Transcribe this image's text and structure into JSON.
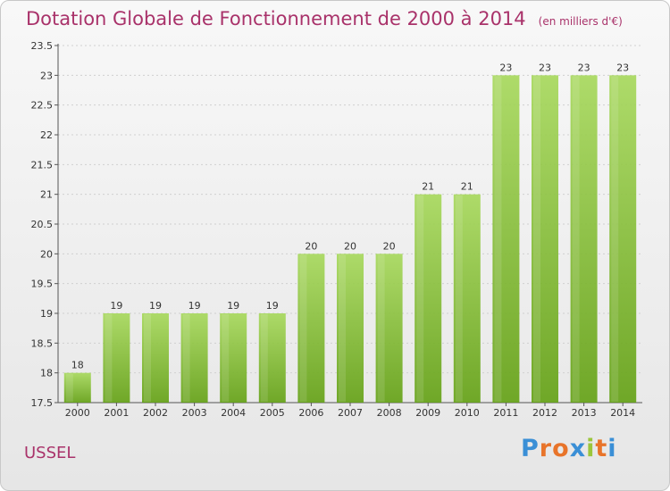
{
  "chart_data": {
    "type": "bar",
    "title": "Dotation Globale de Fonctionnement de 2000 à 2014",
    "subtitle": "(en milliers d'€)",
    "xlabel": "",
    "ylabel": "",
    "ylim": [
      17.5,
      23.5
    ],
    "yticks": [
      "17.5",
      "18",
      "18.5",
      "19",
      "19.5",
      "20",
      "20.5",
      "21",
      "21.5",
      "22",
      "22.5",
      "23",
      "23.5"
    ],
    "categories": [
      "2000",
      "2001",
      "2002",
      "2003",
      "2004",
      "2005",
      "2006",
      "2007",
      "2008",
      "2009",
      "2010",
      "2011",
      "2012",
      "2013",
      "2014"
    ],
    "values": [
      18,
      19,
      19,
      19,
      19,
      19,
      20,
      20,
      20,
      21,
      21,
      23,
      23,
      23,
      23
    ],
    "grid": true
  },
  "footer": {
    "commune": "USSEL",
    "logo_text": "Proxiti"
  },
  "colors": {
    "title": "#a9326a",
    "bar_light": "#a4d655",
    "bar_dark": "#6aa218",
    "grid": "#d0d0d0",
    "text": "#333333"
  }
}
